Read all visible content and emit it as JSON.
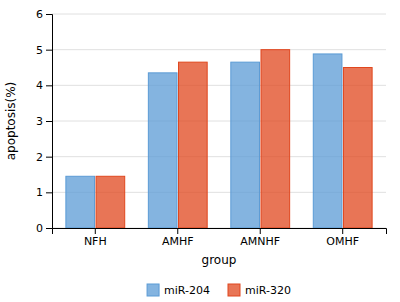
{
  "chart_data": {
    "type": "bar",
    "categories": [
      "NFH",
      "AMHF",
      "AMNHF",
      "OMHF"
    ],
    "series": [
      {
        "name": "miR-204",
        "color": "#5b9bd5",
        "values": [
          1.45,
          4.35,
          4.65,
          4.88
        ]
      },
      {
        "name": "miR-320",
        "color": "#e0471e",
        "values": [
          1.45,
          4.65,
          5.0,
          4.5
        ]
      }
    ],
    "xlabel": "group",
    "ylabel": "apoptosis(%)",
    "ylim": [
      0,
      6
    ],
    "yticks": [
      0,
      1,
      2,
      3,
      4,
      5,
      6
    ],
    "grid": true,
    "legend": "bottom"
  }
}
